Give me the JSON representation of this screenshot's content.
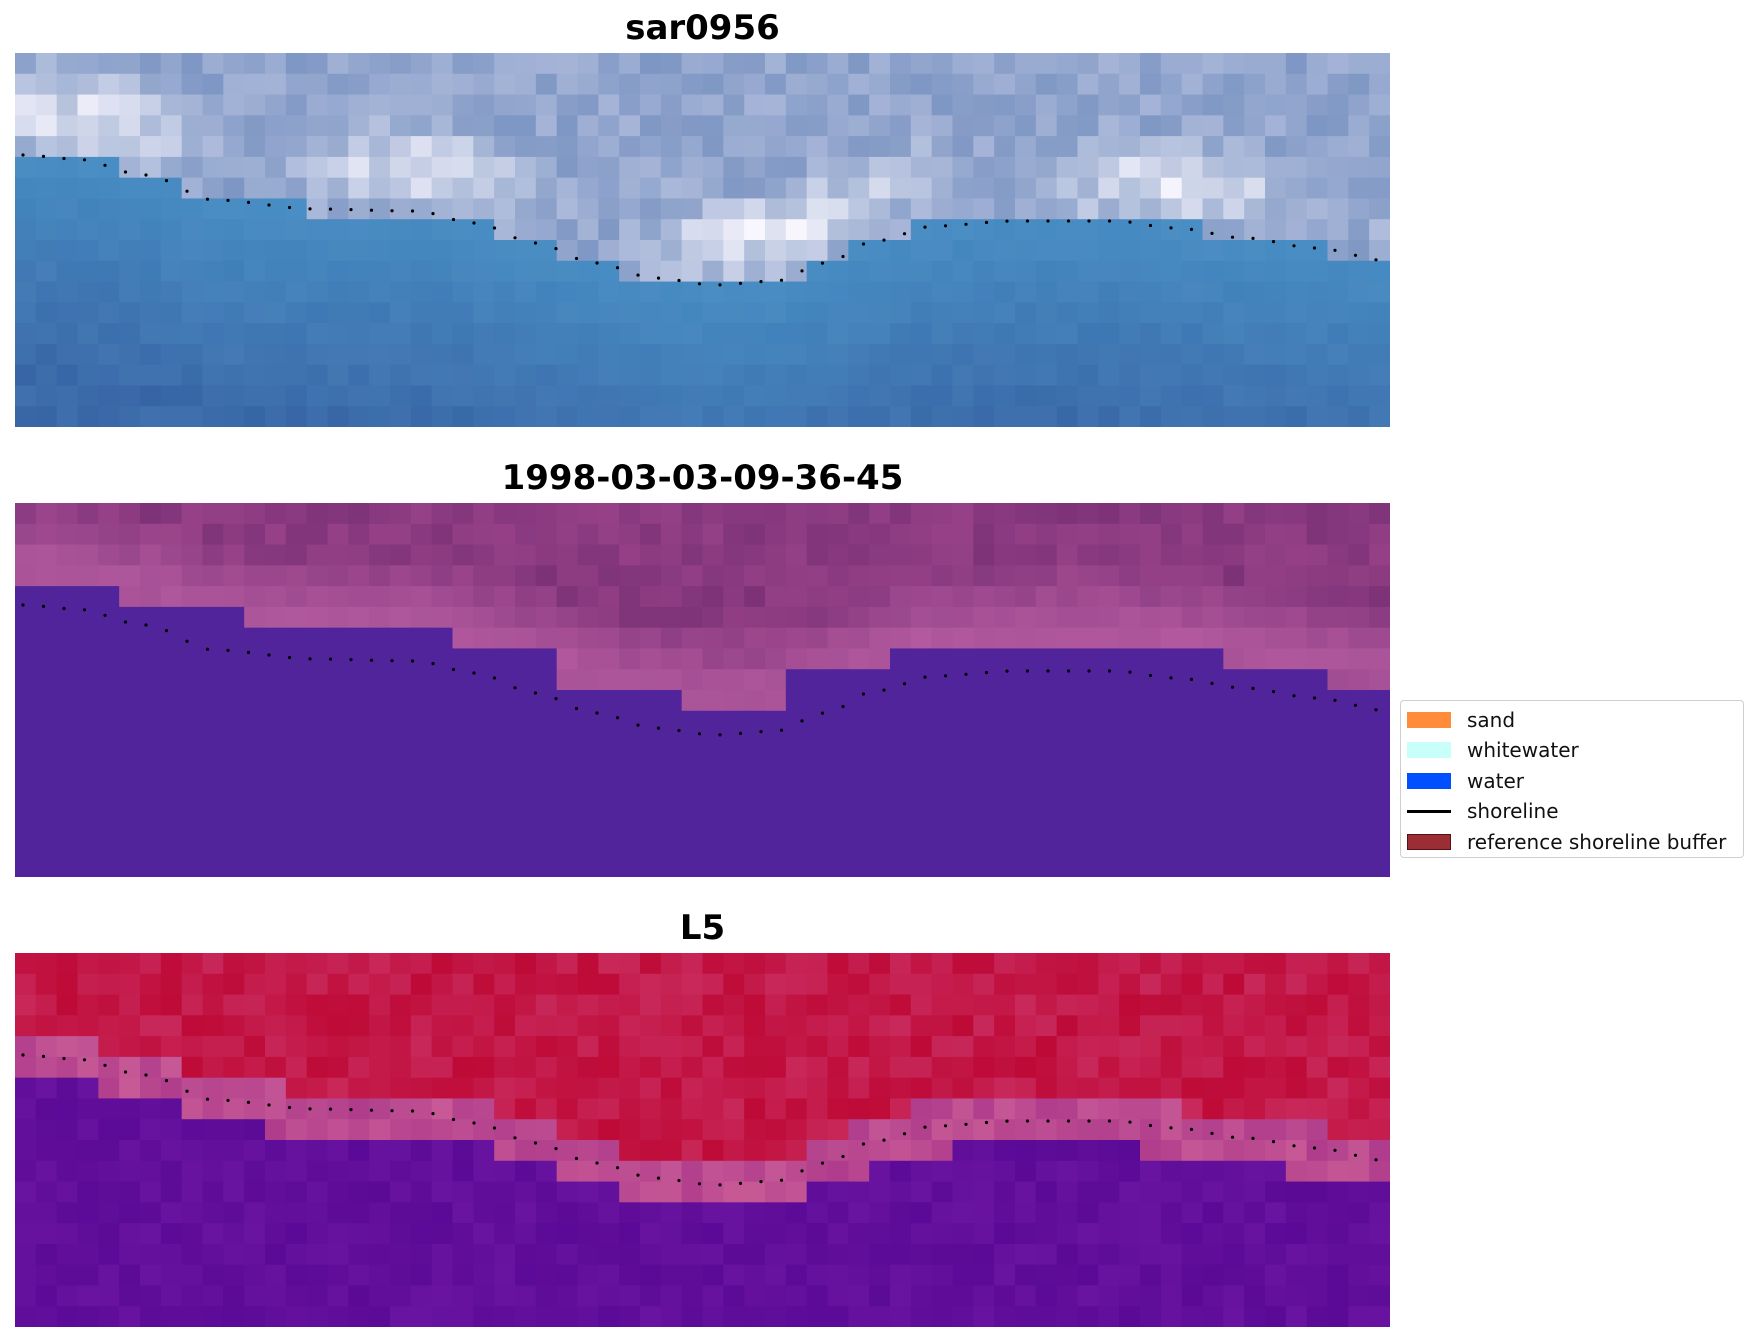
{
  "panels": [
    {
      "title": "sar0956",
      "colormap": "rgb"
    },
    {
      "title": "1998-03-03-09-36-45",
      "colormap": "classified"
    },
    {
      "title": "L5",
      "colormap": "index"
    }
  ],
  "legend": {
    "items": [
      {
        "label": "sand",
        "color": "#ff8c3a",
        "kind": "patch"
      },
      {
        "label": "whitewater",
        "color": "#c8fffb",
        "kind": "patch"
      },
      {
        "label": "water",
        "color": "#0050ff",
        "kind": "patch"
      },
      {
        "label": "shoreline",
        "color": "#000000",
        "kind": "line"
      },
      {
        "label": "reference shoreline buffer",
        "color": "#9b2d35",
        "kind": "patch"
      }
    ]
  },
  "colors": {
    "classified_water": "#52249b",
    "shoreline_dots": "#000000"
  }
}
